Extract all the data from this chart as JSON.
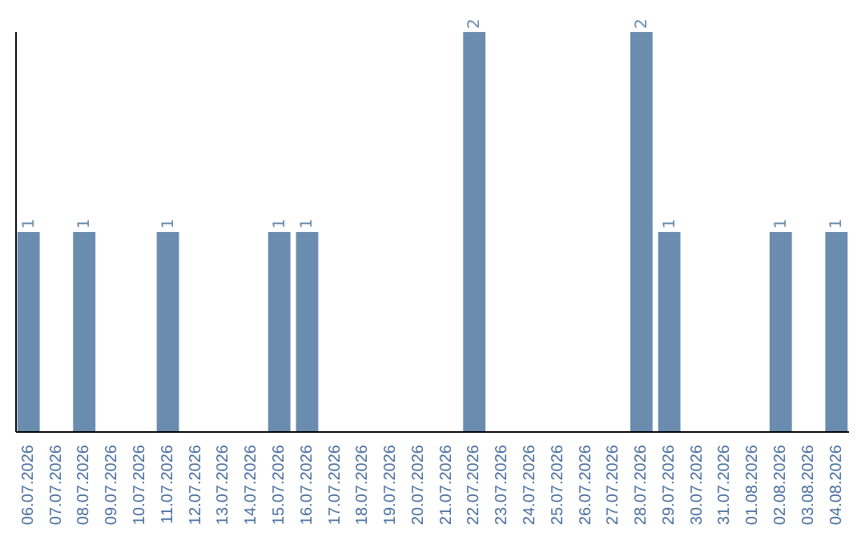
{
  "chart_data": {
    "type": "bar",
    "categories": [
      "06.07.2026",
      "07.07.2026",
      "08.07.2026",
      "09.07.2026",
      "10.07.2026",
      "11.07.2026",
      "12.07.2026",
      "13.07.2026",
      "14.07.2026",
      "15.07.2026",
      "16.07.2026",
      "17.07.2026",
      "18.07.2026",
      "19.07.2026",
      "20.07.2026",
      "21.07.2026",
      "22.07.2026",
      "23.07.2026",
      "24.07.2026",
      "25.07.2026",
      "26.07.2026",
      "27.07.2026",
      "28.07.2026",
      "29.07.2026",
      "30.07.2026",
      "31.07.2026",
      "01.08.2026",
      "02.08.2026",
      "03.08.2026",
      "04.08.2026"
    ],
    "values": [
      1,
      0,
      1,
      0,
      0,
      1,
      0,
      0,
      0,
      1,
      1,
      0,
      0,
      0,
      0,
      0,
      2,
      0,
      0,
      0,
      0,
      0,
      2,
      1,
      0,
      0,
      0,
      1,
      0,
      1
    ],
    "value_labels": [
      "1",
      null,
      "1",
      null,
      null,
      "1",
      null,
      null,
      null,
      "1",
      "1",
      null,
      null,
      null,
      null,
      null,
      "2",
      null,
      null,
      null,
      null,
      null,
      "2",
      "1",
      null,
      null,
      null,
      "1",
      null,
      "1"
    ],
    "color": "#6a8caf",
    "ylim": [
      0,
      2
    ],
    "tick_labels": "x"
  }
}
